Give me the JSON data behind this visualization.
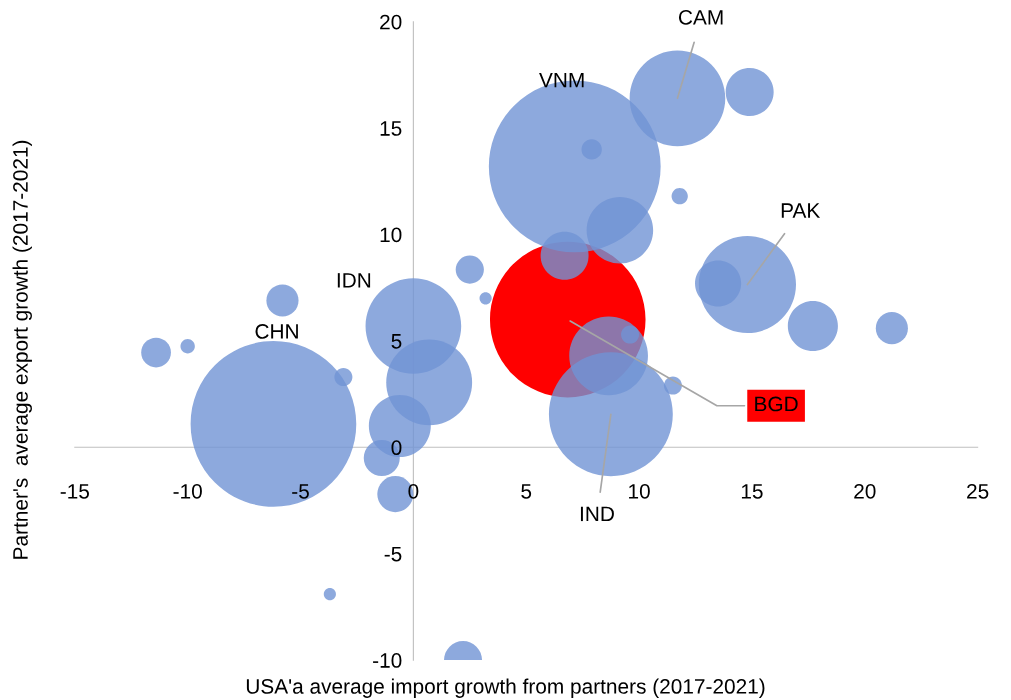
{
  "chart_data": {
    "type": "bubble",
    "xlabel": "USA'a average import growth from partners (2017-2021)",
    "ylabel": "Partner's  average export growth (2017-2021)",
    "xlim": [
      -15,
      25
    ],
    "ylim": [
      -10,
      20
    ],
    "xticks": [
      -15,
      -10,
      -5,
      0,
      5,
      10,
      15,
      20,
      25
    ],
    "yticks": [
      -10,
      -5,
      0,
      5,
      10,
      15,
      20
    ],
    "grid": false,
    "legend": false,
    "series": [
      {
        "name": "BGD",
        "color": "#ff0000",
        "x": [
          6.84
        ],
        "values": [
          6.0
        ],
        "sizes": [
          0.82
        ]
      },
      {
        "color": "#7094d4",
        "x": [
          -6.2,
          7.15,
          8.75,
          11.7,
          14.9,
          14.8,
          13.5,
          17.7,
          21.2,
          9.15,
          6.7,
          7.9,
          11.8,
          8.65,
          9.6,
          11.5,
          0.0,
          0.7,
          -0.6,
          -1.4,
          -0.8,
          -3.1,
          -5.8,
          -11.4,
          -10.0,
          -3.7,
          2.2,
          2.5,
          3.2
        ],
        "values": [
          1.1,
          13.2,
          1.55,
          16.4,
          16.7,
          7.65,
          7.7,
          5.7,
          5.6,
          10.2,
          9.0,
          14.0,
          11.8,
          4.3,
          5.3,
          2.9,
          5.7,
          3.05,
          1.0,
          -0.5,
          -2.2,
          3.3,
          6.9,
          4.45,
          4.75,
          -6.9,
          -10.0,
          8.35,
          7.0
        ],
        "sizes": [
          0.93,
          1,
          0.52,
          0.31,
          0.078,
          0.32,
          0.072,
          0.085,
          0.035,
          0.15,
          0.078,
          0.014,
          0.009,
          0.21,
          0.011,
          0.011,
          0.31,
          0.25,
          0.13,
          0.044,
          0.044,
          0.011,
          0.035,
          0.03,
          0.007,
          0.005,
          0.049,
          0.027,
          0.005
        ]
      }
    ],
    "annotations": [
      {
        "text": "CAM",
        "x": 11.7,
        "y": 16.4
      },
      "VNM",
      {
        "text": "PAK",
        "x": 14.8,
        "y": 7.65
      },
      {
        "text": "IND",
        "x": 8.75,
        "y": 1.55
      },
      "CHN",
      "IDN"
    ]
  }
}
